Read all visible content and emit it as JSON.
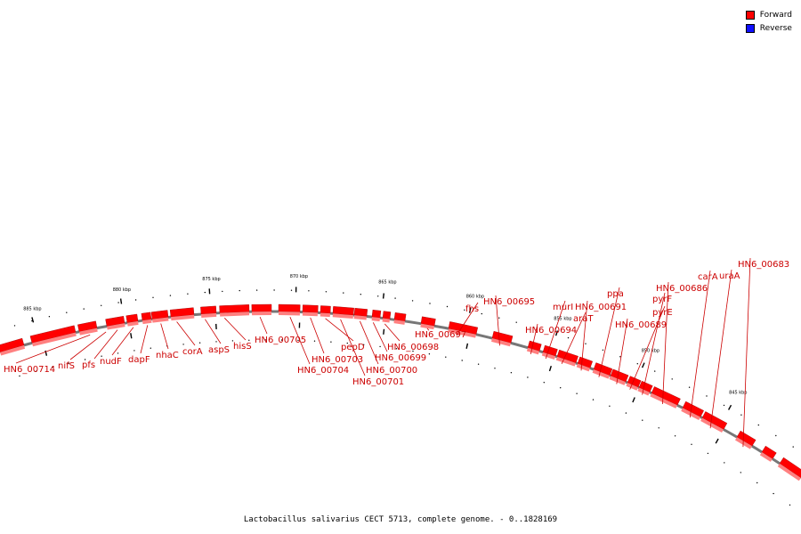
{
  "legend": {
    "forward_label": "Forward",
    "reverse_label": "Reverse",
    "forward_color": "#ff0000",
    "reverse_color": "#1010ff"
  },
  "caption": "Lactobacillus salivarius CECT 5713, complete genome. - 0..1828169",
  "colors": {
    "gene_top": "#ff0000",
    "gene_bottom": "#ff8080",
    "gene_edge": "#990000",
    "backbone": "#777777",
    "label": "#cc0000"
  },
  "ticks": [
    "845 kbp",
    "850 kbp",
    "855 kbp",
    "860 kbp",
    "865 kbp",
    "870 kbp",
    "875 kbp",
    "880 kbp",
    "885 kbp"
  ],
  "genes": [
    "HN6_00714",
    "nifS",
    "pfs",
    "nudF",
    "dapF",
    "nhaC",
    "corA",
    "aspS",
    "hisS",
    "HN6_00705",
    "HN6_00704",
    "HN6_00703",
    "pepD",
    "HN6_00701",
    "HN6_00700",
    "HN6_00699",
    "HN6_00698",
    "HN6_00697",
    "fhs",
    "HN6_00695",
    "HN6_00694",
    "murI",
    "araT",
    "HN6_00691",
    "ppa",
    "HN6_00689",
    "pyrE",
    "pyrF",
    "HN6_00686",
    "carA",
    "uraA",
    "HN6_00683"
  ]
}
